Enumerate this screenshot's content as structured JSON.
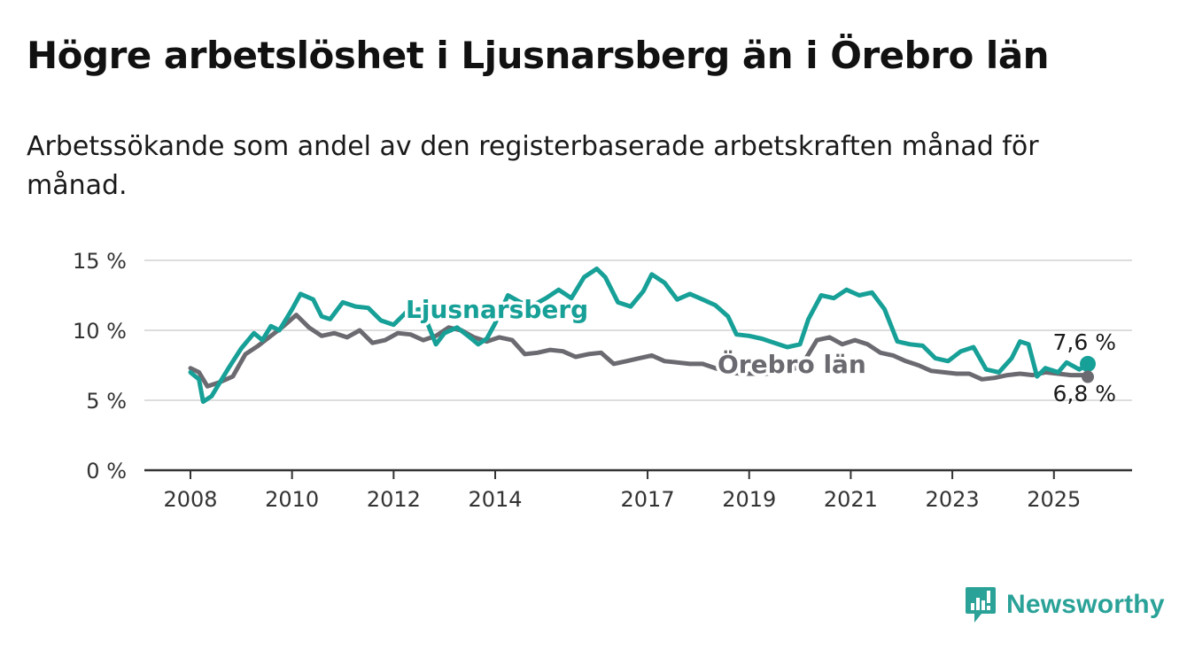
{
  "title": "Högre arbetslöshet i Ljusnarsberg än i Örebro län",
  "subtitle": "Arbetssökande som andel av den registerbaserade arbetskraften månad för månad.",
  "brand": {
    "name": "Newsworthy",
    "color": "#2aa298"
  },
  "chart_data": {
    "type": "line",
    "title": "Högre arbetslöshet i Ljusnarsberg än i Örebro län",
    "xlabel": "",
    "ylabel": "",
    "ylim": [
      0,
      15
    ],
    "y_ticks": [
      {
        "value": 0,
        "label": "0 %"
      },
      {
        "value": 5,
        "label": "5 %"
      },
      {
        "value": 10,
        "label": "10 %"
      },
      {
        "value": 15,
        "label": "15 %"
      }
    ],
    "x_ticks": [
      "2008",
      "2010",
      "2012",
      "2014",
      "2017",
      "2019",
      "2021",
      "2023",
      "2025"
    ],
    "x_time_range": [
      "2008-01",
      "2025-09"
    ],
    "grid": true,
    "series": [
      {
        "name": "Ljusnarsberg",
        "color": "#17a097",
        "end_label": "7,6 %",
        "points": [
          [
            "2008-01",
            7.0
          ],
          [
            "2008-03",
            6.5
          ],
          [
            "2008-04",
            4.9
          ],
          [
            "2008-06",
            5.3
          ],
          [
            "2008-08",
            6.3
          ],
          [
            "2008-10",
            7.3
          ],
          [
            "2009-01",
            8.7
          ],
          [
            "2009-04",
            9.8
          ],
          [
            "2009-06",
            9.3
          ],
          [
            "2009-08",
            10.3
          ],
          [
            "2009-10",
            10.0
          ],
          [
            "2010-01",
            11.5
          ],
          [
            "2010-03",
            12.6
          ],
          [
            "2010-06",
            12.2
          ],
          [
            "2010-08",
            11.0
          ],
          [
            "2010-10",
            10.8
          ],
          [
            "2011-01",
            12.0
          ],
          [
            "2011-04",
            11.7
          ],
          [
            "2011-07",
            11.6
          ],
          [
            "2011-10",
            10.7
          ],
          [
            "2012-01",
            10.4
          ],
          [
            "2012-04",
            11.3
          ],
          [
            "2012-07",
            11.5
          ],
          [
            "2012-09",
            10.5
          ],
          [
            "2012-11",
            9.0
          ],
          [
            "2013-01",
            9.8
          ],
          [
            "2013-04",
            10.2
          ],
          [
            "2013-07",
            9.5
          ],
          [
            "2013-09",
            9.0
          ],
          [
            "2013-11",
            9.4
          ],
          [
            "2014-01",
            10.5
          ],
          [
            "2014-04",
            12.5
          ],
          [
            "2014-07",
            12.0
          ],
          [
            "2014-10",
            11.8
          ],
          [
            "2015-01",
            12.3
          ],
          [
            "2015-04",
            12.9
          ],
          [
            "2015-07",
            12.3
          ],
          [
            "2015-10",
            13.8
          ],
          [
            "2016-01",
            14.4
          ],
          [
            "2016-03",
            13.8
          ],
          [
            "2016-06",
            12.0
          ],
          [
            "2016-09",
            11.7
          ],
          [
            "2016-12",
            12.8
          ],
          [
            "2017-02",
            14.0
          ],
          [
            "2017-05",
            13.4
          ],
          [
            "2017-08",
            12.2
          ],
          [
            "2017-11",
            12.6
          ],
          [
            "2018-02",
            12.2
          ],
          [
            "2018-05",
            11.8
          ],
          [
            "2018-08",
            11.0
          ],
          [
            "2018-10",
            9.7
          ],
          [
            "2019-01",
            9.6
          ],
          [
            "2019-04",
            9.4
          ],
          [
            "2019-07",
            9.1
          ],
          [
            "2019-10",
            8.8
          ],
          [
            "2020-01",
            9.0
          ],
          [
            "2020-03",
            10.8
          ],
          [
            "2020-06",
            12.5
          ],
          [
            "2020-09",
            12.3
          ],
          [
            "2020-12",
            12.9
          ],
          [
            "2021-03",
            12.5
          ],
          [
            "2021-06",
            12.7
          ],
          [
            "2021-09",
            11.5
          ],
          [
            "2021-12",
            9.2
          ],
          [
            "2022-03",
            9.0
          ],
          [
            "2022-06",
            8.9
          ],
          [
            "2022-09",
            8.0
          ],
          [
            "2022-12",
            7.8
          ],
          [
            "2023-03",
            8.5
          ],
          [
            "2023-06",
            8.8
          ],
          [
            "2023-09",
            7.2
          ],
          [
            "2023-12",
            7.0
          ],
          [
            "2024-03",
            8.0
          ],
          [
            "2024-05",
            9.2
          ],
          [
            "2024-07",
            9.0
          ],
          [
            "2024-09",
            6.7
          ],
          [
            "2024-11",
            7.3
          ],
          [
            "2025-02",
            7.0
          ],
          [
            "2025-04",
            7.7
          ],
          [
            "2025-07",
            7.2
          ],
          [
            "2025-09",
            7.6
          ]
        ]
      },
      {
        "name": "Örebro län",
        "color": "#6b6a70",
        "end_label": "6,8 %",
        "points": [
          [
            "2008-01",
            7.3
          ],
          [
            "2008-03",
            7.0
          ],
          [
            "2008-05",
            6.0
          ],
          [
            "2008-08",
            6.3
          ],
          [
            "2008-11",
            6.7
          ],
          [
            "2009-02",
            8.3
          ],
          [
            "2009-05",
            8.9
          ],
          [
            "2009-08",
            9.6
          ],
          [
            "2009-11",
            10.3
          ],
          [
            "2010-02",
            11.1
          ],
          [
            "2010-05",
            10.2
          ],
          [
            "2010-08",
            9.6
          ],
          [
            "2010-11",
            9.8
          ],
          [
            "2011-02",
            9.5
          ],
          [
            "2011-05",
            10.0
          ],
          [
            "2011-08",
            9.1
          ],
          [
            "2011-11",
            9.3
          ],
          [
            "2012-02",
            9.8
          ],
          [
            "2012-05",
            9.7
          ],
          [
            "2012-08",
            9.3
          ],
          [
            "2012-11",
            9.6
          ],
          [
            "2013-02",
            10.2
          ],
          [
            "2013-05",
            10.0
          ],
          [
            "2013-08",
            9.5
          ],
          [
            "2013-11",
            9.2
          ],
          [
            "2014-02",
            9.5
          ],
          [
            "2014-05",
            9.3
          ],
          [
            "2014-08",
            8.3
          ],
          [
            "2014-11",
            8.4
          ],
          [
            "2015-02",
            8.6
          ],
          [
            "2015-05",
            8.5
          ],
          [
            "2015-08",
            8.1
          ],
          [
            "2015-11",
            8.3
          ],
          [
            "2016-02",
            8.4
          ],
          [
            "2016-05",
            7.6
          ],
          [
            "2016-08",
            7.8
          ],
          [
            "2016-11",
            8.0
          ],
          [
            "2017-02",
            8.2
          ],
          [
            "2017-05",
            7.8
          ],
          [
            "2017-08",
            7.7
          ],
          [
            "2017-11",
            7.6
          ],
          [
            "2018-02",
            7.6
          ],
          [
            "2018-05",
            7.3
          ],
          [
            "2018-08",
            7.0
          ],
          [
            "2018-11",
            6.9
          ],
          [
            "2019-02",
            6.9
          ],
          [
            "2019-05",
            6.9
          ],
          [
            "2019-08",
            7.0
          ],
          [
            "2019-11",
            7.1
          ],
          [
            "2020-02",
            7.8
          ],
          [
            "2020-05",
            9.3
          ],
          [
            "2020-08",
            9.5
          ],
          [
            "2020-11",
            9.0
          ],
          [
            "2021-02",
            9.3
          ],
          [
            "2021-05",
            9.0
          ],
          [
            "2021-08",
            8.4
          ],
          [
            "2021-11",
            8.2
          ],
          [
            "2022-02",
            7.8
          ],
          [
            "2022-05",
            7.5
          ],
          [
            "2022-08",
            7.1
          ],
          [
            "2022-11",
            7.0
          ],
          [
            "2023-02",
            6.9
          ],
          [
            "2023-05",
            6.9
          ],
          [
            "2023-08",
            6.5
          ],
          [
            "2023-11",
            6.6
          ],
          [
            "2024-02",
            6.8
          ],
          [
            "2024-05",
            6.9
          ],
          [
            "2024-08",
            6.8
          ],
          [
            "2024-11",
            7.0
          ],
          [
            "2025-02",
            6.9
          ],
          [
            "2025-05",
            6.8
          ],
          [
            "2025-09",
            6.8
          ]
        ]
      }
    ]
  }
}
